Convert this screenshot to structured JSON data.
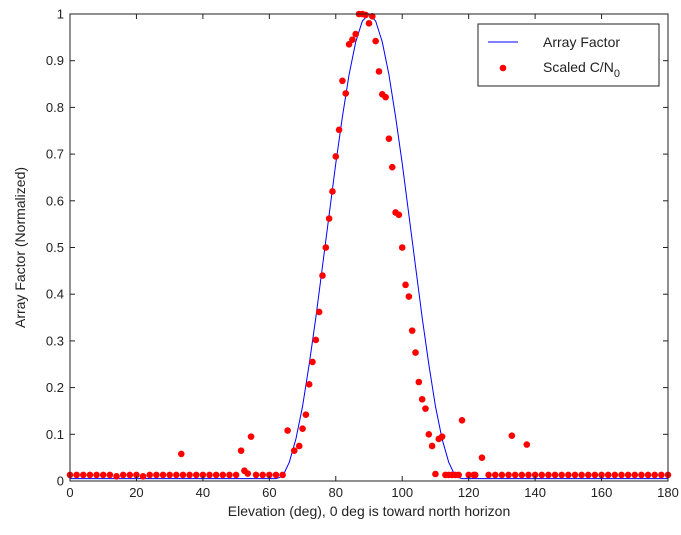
{
  "chart_data": {
    "type": "line",
    "title": "",
    "xlabel": "Elevation (deg), 0 deg is toward north horizon",
    "ylabel": "Array Factor (Normalized)",
    "xlim": [
      0,
      180
    ],
    "ylim": [
      0,
      1
    ],
    "xticks": [
      0,
      20,
      40,
      60,
      80,
      100,
      120,
      140,
      160,
      180
    ],
    "yticks": [
      0,
      0.1,
      0.2,
      0.3,
      0.4,
      0.5,
      0.6,
      0.7,
      0.8,
      0.9,
      1
    ],
    "grid": false,
    "legend_position": "top-right",
    "series": [
      {
        "name": "Array Factor",
        "kind": "line",
        "color": "#0000ff",
        "x": [
          0,
          10,
          20,
          30,
          40,
          50,
          55,
          60,
          62,
          64,
          66,
          68,
          70,
          72,
          74,
          76,
          78,
          80,
          82,
          84,
          86,
          88,
          90,
          92,
          94,
          96,
          98,
          100,
          102,
          104,
          106,
          108,
          110,
          112,
          114,
          116,
          118,
          120,
          125,
          130,
          140,
          150,
          160,
          170,
          180
        ],
        "y": [
          0.005,
          0.005,
          0.005,
          0.005,
          0.005,
          0.005,
          0.005,
          0.005,
          0.005,
          0.01,
          0.04,
          0.09,
          0.16,
          0.25,
          0.35,
          0.46,
          0.57,
          0.68,
          0.78,
          0.87,
          0.94,
          0.985,
          1.0,
          0.985,
          0.94,
          0.87,
          0.78,
          0.68,
          0.57,
          0.46,
          0.35,
          0.25,
          0.16,
          0.09,
          0.04,
          0.01,
          0.005,
          0.005,
          0.005,
          0.005,
          0.005,
          0.005,
          0.005,
          0.005,
          0.005
        ]
      },
      {
        "name": "Scaled C/N",
        "name_subscript": "0",
        "kind": "scatter",
        "color": "#ff0000",
        "x": [
          0,
          2,
          4,
          6,
          8,
          10,
          12,
          14,
          16,
          18,
          20,
          22,
          24,
          26,
          28,
          30,
          32,
          33.5,
          34,
          36,
          38,
          40,
          42,
          44,
          46,
          48,
          50,
          51.5,
          52.5,
          53.5,
          54.5,
          56,
          58,
          60,
          62,
          64,
          65.5,
          67.5,
          69,
          70,
          71,
          72,
          73,
          74,
          75,
          76,
          77,
          78,
          79,
          80,
          81,
          82,
          83,
          84,
          85,
          86,
          87,
          88,
          89,
          90,
          91,
          92,
          93,
          94,
          95,
          96,
          97,
          98,
          99,
          100,
          101,
          102,
          103,
          104,
          105,
          106,
          107,
          108,
          109,
          110,
          111,
          112,
          113,
          114,
          115,
          116,
          117,
          118,
          120,
          121.5,
          122,
          124,
          126,
          128,
          130,
          132,
          133,
          134,
          136,
          137.5,
          138,
          140,
          142,
          144,
          146,
          148,
          150,
          152,
          154,
          156,
          158,
          160,
          162,
          164,
          166,
          168,
          170,
          172,
          174,
          176,
          178,
          180
        ],
        "y": [
          0.013,
          0.013,
          0.013,
          0.013,
          0.013,
          0.013,
          0.013,
          0.01,
          0.013,
          0.013,
          0.013,
          0.01,
          0.013,
          0.013,
          0.013,
          0.013,
          0.013,
          0.058,
          0.013,
          0.013,
          0.013,
          0.013,
          0.013,
          0.013,
          0.013,
          0.013,
          0.013,
          0.065,
          0.022,
          0.016,
          0.095,
          0.013,
          0.013,
          0.013,
          0.013,
          0.013,
          0.108,
          0.065,
          0.075,
          0.112,
          0.142,
          0.207,
          0.255,
          0.302,
          0.362,
          0.44,
          0.5,
          0.562,
          0.62,
          0.695,
          0.752,
          0.857,
          0.83,
          0.935,
          0.945,
          0.957,
          1.0,
          1.0,
          0.998,
          0.98,
          0.995,
          0.942,
          0.877,
          0.828,
          0.822,
          0.733,
          0.672,
          0.575,
          0.57,
          0.5,
          0.42,
          0.395,
          0.322,
          0.275,
          0.212,
          0.175,
          0.155,
          0.1,
          0.075,
          0.015,
          0.09,
          0.095,
          0.013,
          0.013,
          0.013,
          0.013,
          0.013,
          0.13,
          0.013,
          0.013,
          0.013,
          0.05,
          0.013,
          0.013,
          0.013,
          0.013,
          0.097,
          0.013,
          0.013,
          0.078,
          0.013,
          0.013,
          0.013,
          0.013,
          0.013,
          0.013,
          0.013,
          0.013,
          0.013,
          0.013,
          0.013,
          0.013,
          0.013,
          0.013,
          0.013,
          0.013,
          0.013,
          0.013,
          0.013,
          0.013,
          0.013,
          0.013
        ]
      }
    ]
  }
}
